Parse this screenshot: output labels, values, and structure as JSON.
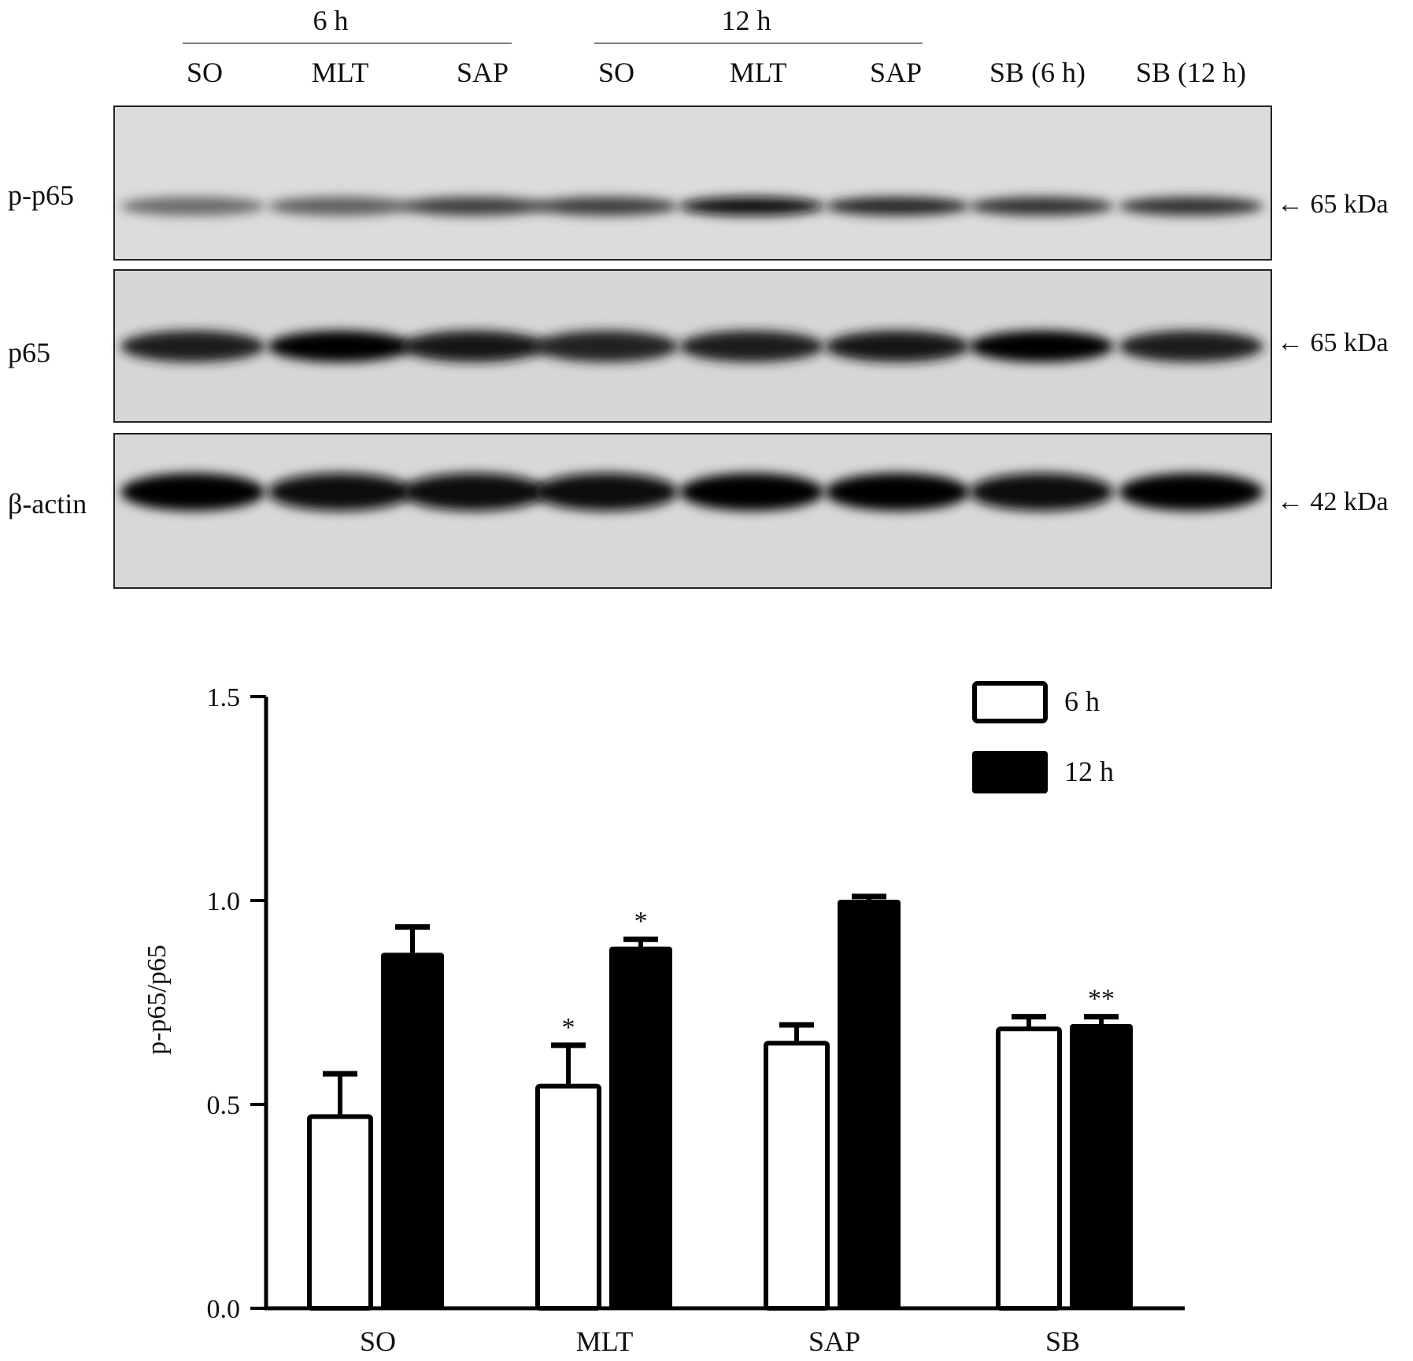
{
  "blot": {
    "groups": [
      {
        "label": "6 h",
        "lanes": [
          "SO",
          "MLT",
          "SAP"
        ]
      },
      {
        "label": "12 h",
        "lanes": [
          "SO",
          "MLT",
          "SAP"
        ]
      }
    ],
    "extra_lanes": [
      "SB (6 h)",
      "SB (12 h)"
    ],
    "rows": [
      {
        "label": "p-p65",
        "marker": "← 65 kDa",
        "intensity": [
          0.55,
          0.6,
          0.75,
          0.75,
          0.95,
          0.85,
          0.8,
          0.8
        ]
      },
      {
        "label": "p65",
        "marker": "← 65 kDa",
        "intensity": [
          0.9,
          1.0,
          0.92,
          0.88,
          0.9,
          0.92,
          1.0,
          0.9
        ]
      },
      {
        "label": "β-actin",
        "marker": "← 42 kDa",
        "intensity": [
          1.0,
          0.95,
          0.95,
          0.95,
          1.0,
          1.0,
          0.95,
          1.0
        ]
      }
    ]
  },
  "chart_data": {
    "type": "bar",
    "categories": [
      "SO",
      "MLT",
      "SAP",
      "SB"
    ],
    "series": [
      {
        "name": "6 h",
        "values": [
          0.47,
          0.545,
          0.65,
          0.685
        ],
        "errors": [
          0.105,
          0.1,
          0.045,
          0.03
        ],
        "color": "#ffffff"
      },
      {
        "name": "12 h",
        "values": [
          0.87,
          0.885,
          1.0,
          0.695
        ],
        "errors": [
          0.065,
          0.02,
          0.01,
          0.02
        ],
        "color": "#000000"
      }
    ],
    "significance": [
      {
        "category": "MLT",
        "series": "6 h",
        "label": "*"
      },
      {
        "category": "MLT",
        "series": "12 h",
        "label": "*"
      },
      {
        "category": "SB",
        "series": "12 h",
        "label": "**"
      }
    ],
    "ylabel": "p-p65/p65",
    "xlabel": "",
    "ylim": [
      0,
      1.5
    ],
    "yticks": [
      "0.0",
      "0.5",
      "1.0",
      "1.5"
    ],
    "legend_position": "top-right",
    "grid": false
  }
}
